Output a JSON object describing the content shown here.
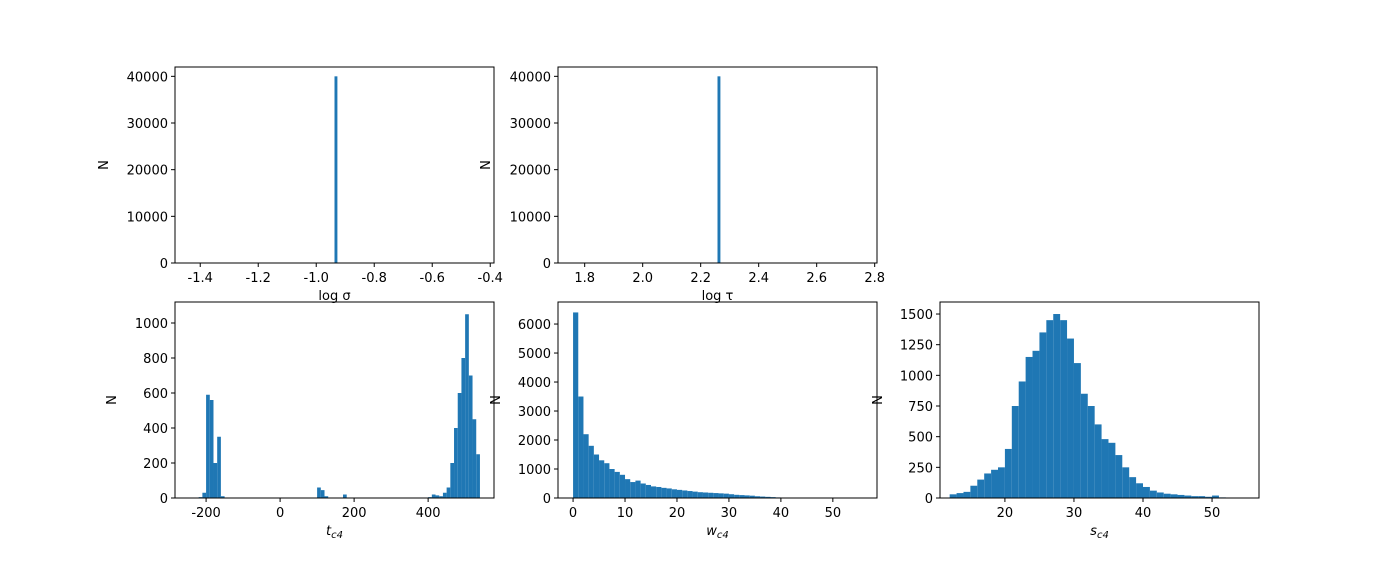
{
  "chart_data": [
    {
      "type": "histogram",
      "xlabel": "log σ",
      "ylabel": "N",
      "color": "#1f77b4",
      "bins": [
        -0.937,
        -0.927
      ],
      "counts": [
        40000
      ],
      "xlim": [
        -1.487,
        -0.387
      ],
      "ylim": [
        0,
        42000
      ],
      "xticks": [
        -1.4,
        -1.2,
        {
          "value": -1,
          "label": "-1.0"
        },
        -0.8,
        -0.6,
        -0.4
      ],
      "yticks": [
        0,
        10000,
        20000,
        30000,
        40000
      ]
    },
    {
      "type": "histogram",
      "xlabel": "log τ",
      "ylabel": "N",
      "color": "#1f77b4",
      "bins": [
        2.258,
        2.268
      ],
      "counts": [
        40000
      ],
      "xlim": [
        1.708,
        2.808
      ],
      "ylim": [
        0,
        42000
      ],
      "xticks": [
        1.8,
        {
          "value": 2,
          "label": "2.0"
        },
        2.2,
        2.4,
        2.6,
        2.8
      ],
      "yticks": [
        0,
        10000,
        20000,
        30000,
        40000
      ]
    },
    {
      "type": "histogram",
      "xlabel": "t",
      "xlabel_sub": "c4",
      "ylabel": "N",
      "color": "#1f77b4",
      "bins": [
        -250,
        -240,
        -230,
        -220,
        -210,
        -200,
        -190,
        -180,
        -170,
        -160,
        -150,
        -140,
        -130,
        -120,
        -110,
        -100,
        -90,
        -80,
        -70,
        -60,
        -50,
        -40,
        -30,
        -20,
        -10,
        0,
        10,
        20,
        30,
        40,
        50,
        60,
        70,
        80,
        90,
        100,
        110,
        120,
        130,
        140,
        150,
        160,
        170,
        180,
        190,
        200,
        210,
        220,
        230,
        240,
        250,
        260,
        270,
        280,
        290,
        300,
        310,
        320,
        330,
        340,
        350,
        360,
        370,
        380,
        390,
        400,
        410,
        420,
        430,
        440,
        450,
        460,
        470,
        480,
        490,
        500,
        510,
        520,
        530,
        540,
        550
      ],
      "counts": [
        0,
        0,
        2,
        5,
        30,
        590,
        560,
        200,
        350,
        10,
        0,
        0,
        0,
        0,
        0,
        0,
        0,
        0,
        0,
        0,
        0,
        0,
        0,
        0,
        0,
        0,
        0,
        0,
        0,
        0,
        0,
        0,
        0,
        0,
        0,
        60,
        45,
        10,
        0,
        0,
        0,
        0,
        20,
        0,
        0,
        0,
        0,
        0,
        0,
        0,
        0,
        0,
        0,
        0,
        0,
        0,
        0,
        0,
        0,
        0,
        0,
        0,
        0,
        0,
        0,
        5,
        20,
        15,
        10,
        30,
        60,
        200,
        400,
        600,
        800,
        1050,
        700,
        450,
        250,
        0
      ],
      "xlim": [
        -284,
        578
      ],
      "ylim": [
        0,
        1120
      ],
      "xticks": [
        -200,
        0,
        200,
        400
      ],
      "yticks": [
        0,
        200,
        400,
        600,
        800,
        1000
      ]
    },
    {
      "type": "histogram",
      "xlabel": "w",
      "xlabel_sub": "c4",
      "ylabel": "N",
      "color": "#1f77b4",
      "bins": [
        0,
        1,
        2,
        3,
        4,
        5,
        6,
        7,
        8,
        9,
        10,
        11,
        12,
        13,
        14,
        15,
        16,
        17,
        18,
        19,
        20,
        21,
        22,
        23,
        24,
        25,
        26,
        27,
        28,
        29,
        30,
        31,
        32,
        33,
        34,
        35,
        36,
        37,
        38,
        39,
        40,
        41,
        42,
        43,
        44,
        45,
        46,
        47,
        48,
        49,
        50,
        51,
        52,
        53,
        54,
        55,
        56
      ],
      "counts": [
        6400,
        3500,
        2200,
        1800,
        1500,
        1300,
        1200,
        1000,
        900,
        800,
        650,
        550,
        600,
        500,
        450,
        400,
        380,
        350,
        330,
        300,
        280,
        260,
        240,
        220,
        200,
        190,
        180,
        170,
        160,
        150,
        130,
        110,
        100,
        90,
        80,
        60,
        50,
        40,
        30,
        20,
        15,
        10,
        8,
        6,
        5,
        4,
        3,
        2,
        2,
        1,
        1,
        1,
        0,
        0,
        0,
        1
      ],
      "xlim": [
        -2.9,
        58.5
      ],
      "ylim": [
        0,
        6760
      ],
      "xticks": [
        0,
        10,
        20,
        30,
        40,
        50
      ],
      "yticks": [
        0,
        1000,
        2000,
        3000,
        4000,
        5000,
        6000
      ]
    },
    {
      "type": "histogram",
      "xlabel": "s",
      "xlabel_sub": "c4",
      "ylabel": "N",
      "color": "#1f77b4",
      "bins": [
        12,
        13,
        14,
        15,
        16,
        17,
        18,
        19,
        20,
        21,
        22,
        23,
        24,
        25,
        26,
        27,
        28,
        29,
        30,
        31,
        32,
        33,
        34,
        35,
        36,
        37,
        38,
        39,
        40,
        41,
        42,
        43,
        44,
        45,
        46,
        47,
        48,
        49,
        50,
        51,
        52,
        53,
        54,
        55
      ],
      "counts": [
        30,
        40,
        50,
        100,
        150,
        200,
        230,
        250,
        400,
        750,
        950,
        1150,
        1200,
        1350,
        1450,
        1500,
        1450,
        1300,
        1100,
        850,
        750,
        600,
        480,
        450,
        350,
        250,
        170,
        120,
        90,
        60,
        45,
        35,
        30,
        25,
        20,
        15,
        15,
        10,
        20,
        5,
        3,
        2,
        1
      ],
      "xlim": [
        10.6,
        56.8
      ],
      "ylim": [
        0,
        1598
      ],
      "xticks": [
        20,
        30,
        40,
        50
      ],
      "yticks": [
        0,
        250,
        500,
        750,
        1000,
        1250,
        1500
      ]
    }
  ]
}
